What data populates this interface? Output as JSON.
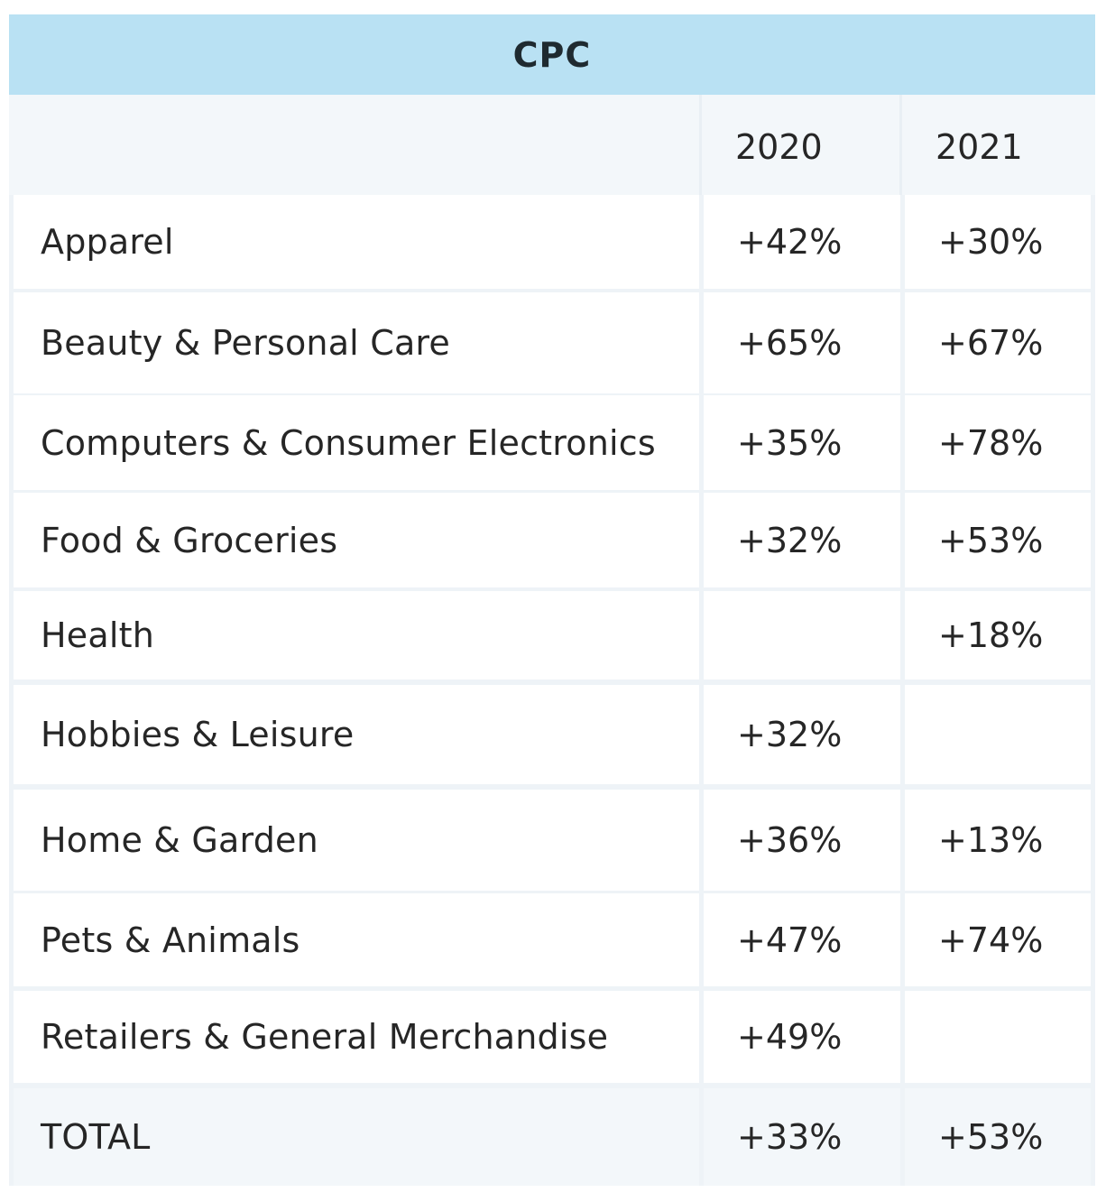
{
  "chart_data": {
    "type": "table",
    "title": "CPC",
    "columns": [
      "",
      "2020",
      "2021"
    ],
    "rows": [
      {
        "category": "Apparel",
        "y2020": "+42%",
        "y2021": "+30%"
      },
      {
        "category": "Beauty & Personal Care",
        "y2020": "+65%",
        "y2021": "+67%"
      },
      {
        "category": "Computers & Consumer Electronics",
        "y2020": "+35%",
        "y2021": "+78%"
      },
      {
        "category": "Food & Groceries",
        "y2020": "+32%",
        "y2021": "+53%"
      },
      {
        "category": "Health",
        "y2020": "",
        "y2021": "+18%"
      },
      {
        "category": "Hobbies & Leisure",
        "y2020": "+32%",
        "y2021": ""
      },
      {
        "category": "Home & Garden",
        "y2020": "+36%",
        "y2021": "+13%"
      },
      {
        "category": "Pets & Animals",
        "y2020": "+47%",
        "y2021": "+74%"
      },
      {
        "category": "Retailers & General Merchandise",
        "y2020": "+49%",
        "y2021": ""
      },
      {
        "category": "TOTAL",
        "y2020": "+33%",
        "y2021": "+53%"
      }
    ],
    "colors": {
      "header_bg": "#b9e1f3",
      "subheader_bg": "#f3f7fa",
      "grid": "#eef3f7",
      "cell_bg": "#ffffff",
      "text": "#262626"
    }
  }
}
